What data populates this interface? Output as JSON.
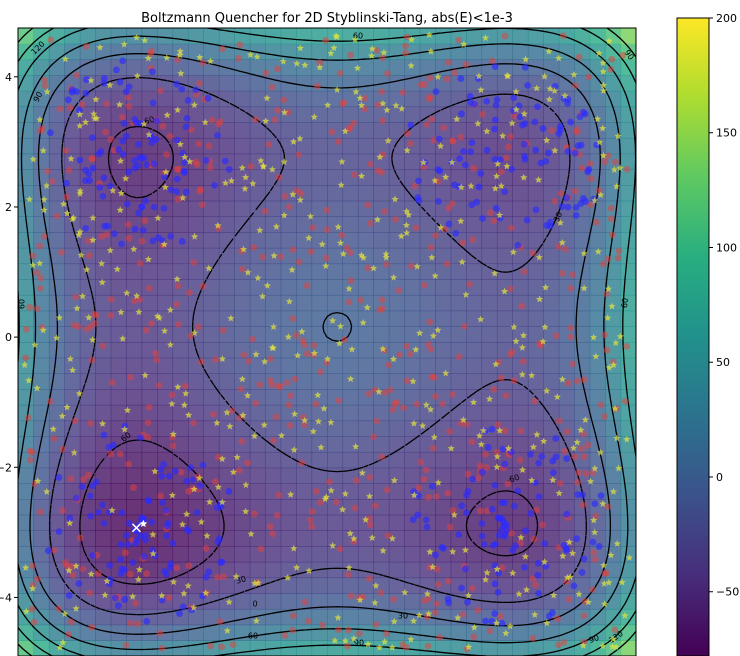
{
  "chart_data": {
    "type": "heatmap",
    "title": "Boltzmann Quencher for 2D Styblinski-Tang, abs(E)<1e-3",
    "xlabel": "",
    "ylabel": "",
    "xlim": [
      -4.75,
      4.75
    ],
    "ylim": [
      -4.9,
      4.75
    ],
    "x_ticks": [
      "−4",
      "−2",
      "0",
      "2",
      "4"
    ],
    "y_ticks": [
      "4",
      "2",
      "0",
      "−2",
      "−4"
    ],
    "contour_levels": [
      -60,
      -30,
      0,
      30,
      60,
      90,
      120
    ],
    "contour_labels": [
      "120",
      "90",
      "60",
      "-60",
      "30",
      "60",
      "90",
      "-60",
      "60",
      "30",
      "0",
      "30",
      "60",
      "90",
      "90",
      "120",
      "60"
    ],
    "colorbar": {
      "ticks": [
        "200",
        "150",
        "100",
        "50",
        "0",
        "−50"
      ],
      "values": [
        200,
        150,
        100,
        50,
        0,
        -50
      ],
      "range": [
        -78,
        200
      ],
      "colormap": "viridis"
    },
    "minima": [
      {
        "x": -2.9,
        "y": -2.9,
        "value": -78.3
      },
      {
        "x": -2.9,
        "y": 2.75,
        "value": -64.2
      },
      {
        "x": 2.75,
        "y": -2.9,
        "value": -64.2
      },
      {
        "x": 2.75,
        "y": 2.75,
        "value": -50.1
      }
    ],
    "markers": [
      {
        "name": "red dots",
        "color": "#e8403c"
      },
      {
        "name": "blue dots",
        "color": "#2b2bff"
      },
      {
        "name": "yellow stars",
        "color": "#e6e63c"
      },
      {
        "name": "white cross",
        "color": "#ffffff",
        "x": -2.93,
        "y": -2.93
      }
    ]
  }
}
